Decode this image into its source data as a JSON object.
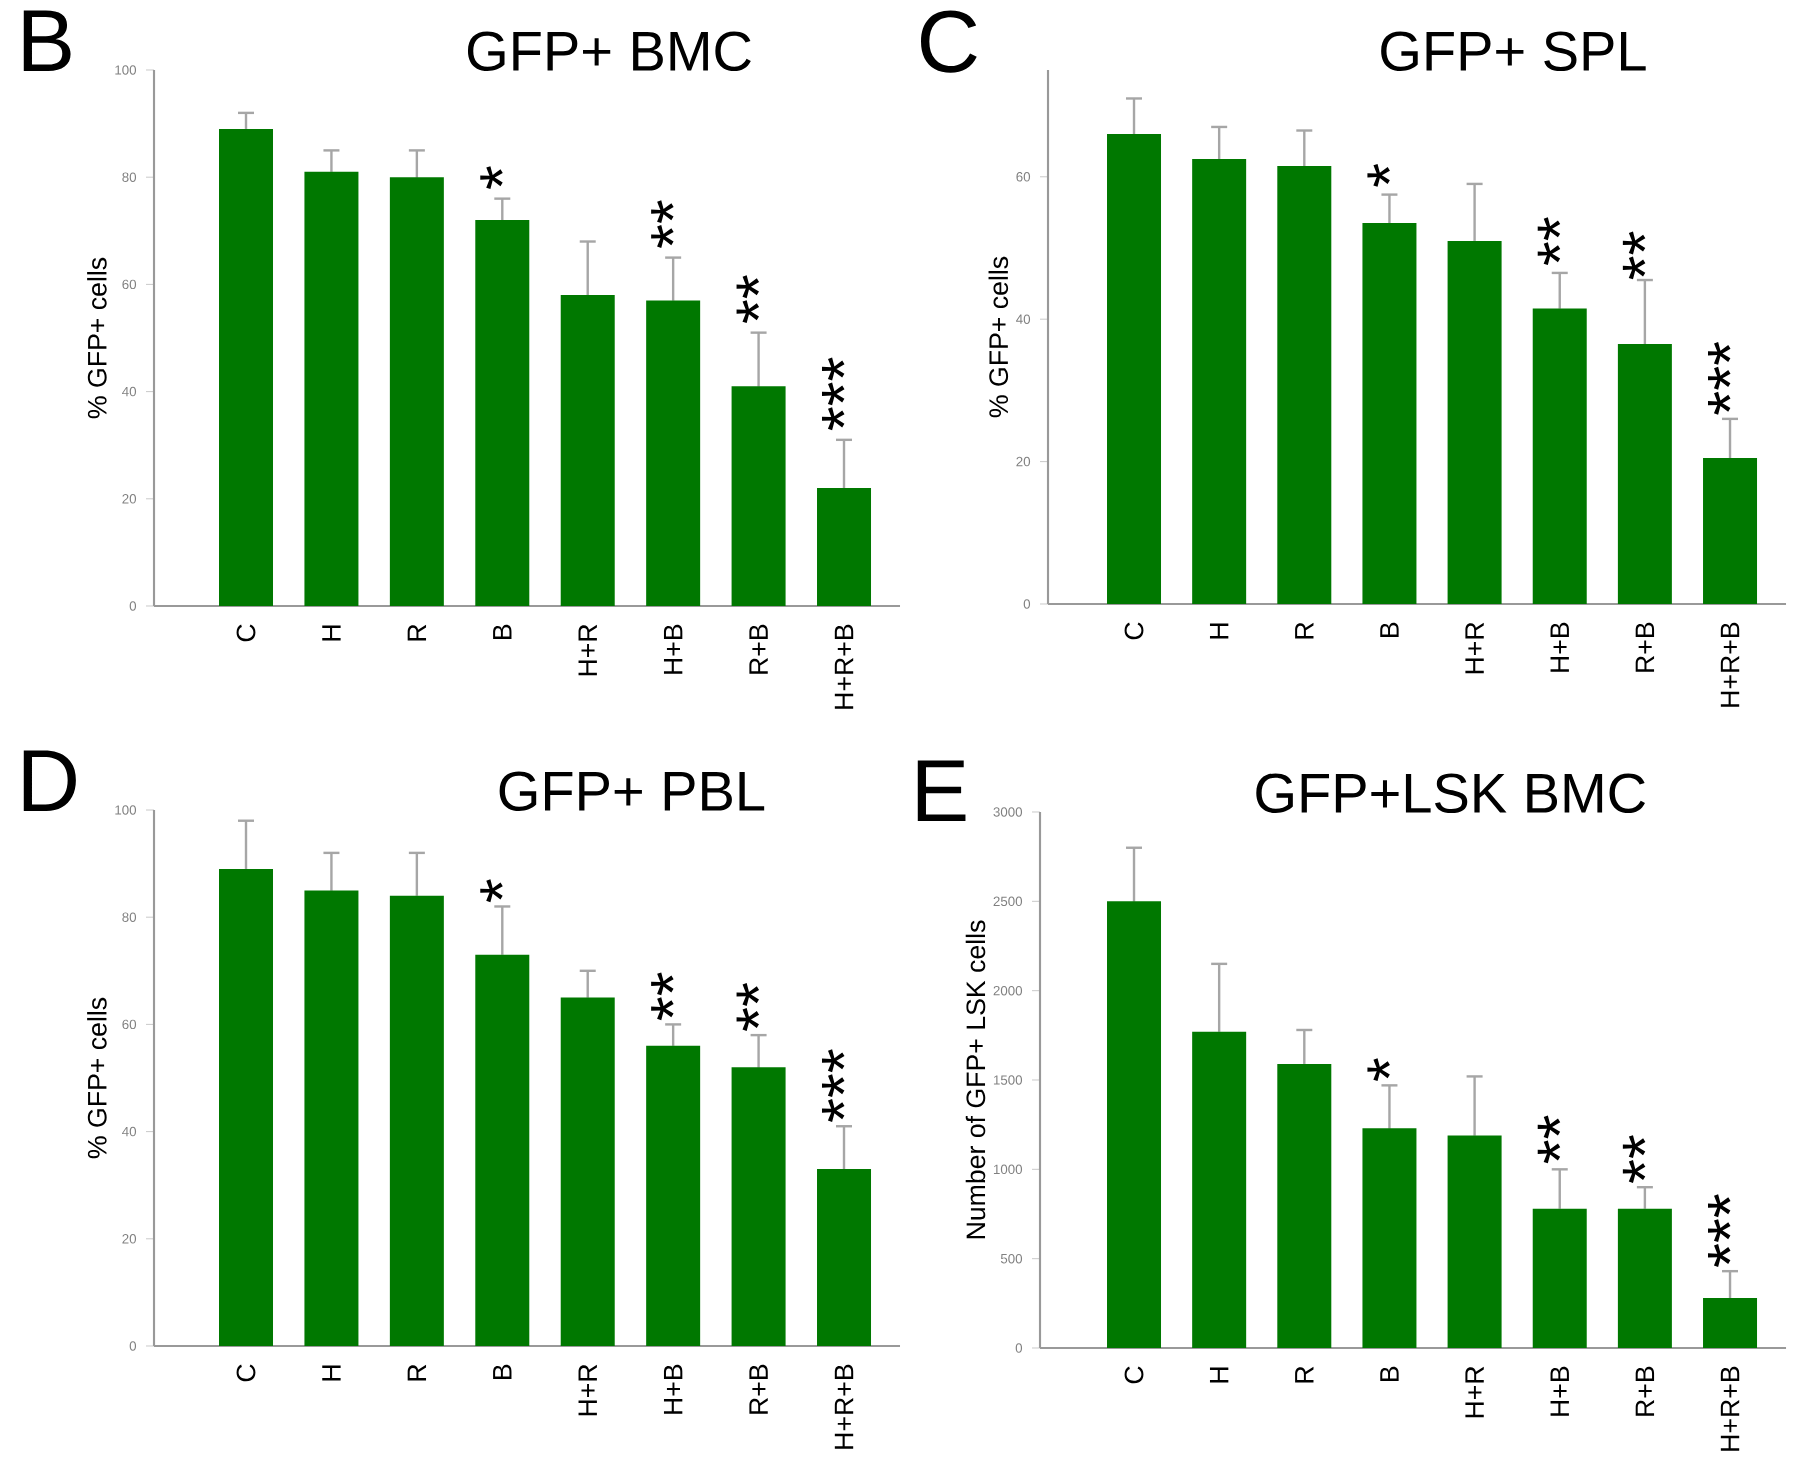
{
  "chart_data": [
    {
      "type": "bar",
      "title": "GFP+ BMC",
      "ylabel": "% GFP+ cells",
      "categories": [
        "C",
        "H",
        "R",
        "B",
        "H+R",
        "H+B",
        "R+B",
        "H+R+B"
      ],
      "values": [
        89,
        81,
        80,
        72,
        58,
        57,
        41,
        22
      ],
      "errors": [
        3,
        4,
        5,
        4,
        10,
        8,
        10,
        9
      ],
      "color": "#007800",
      "ylim": [
        0,
        100
      ],
      "yticks": [
        0,
        20,
        40,
        60,
        80,
        100
      ],
      "annotations": [
        "B",
        {
          "text": "*",
          "x": "B",
          "y": 77
        },
        {
          "text": "**",
          "x": "H+B",
          "y": 66
        },
        {
          "text": "**",
          "x": "R+B",
          "y": 52
        },
        {
          "text": "***",
          "x": "H+R+B",
          "y": 32
        }
      ]
    },
    {
      "type": "bar",
      "title": "GFP+ SPL",
      "ylabel": "% GFP+ cells",
      "categories": [
        "C",
        "H",
        "R",
        "B",
        "H+R",
        "H+B",
        "R+B",
        "H+R+B"
      ],
      "values": [
        66,
        62.5,
        61.5,
        53.5,
        51,
        41.5,
        36.5,
        20.5
      ],
      "errors": [
        5,
        4.5,
        5,
        4,
        8,
        5,
        9,
        5.5
      ],
      "color": "#007800",
      "ylim": [
        0,
        75
      ],
      "yticks": [
        0,
        20,
        40,
        60
      ],
      "annotations": [
        "C",
        {
          "text": "*",
          "x": "B",
          "y": 58
        },
        {
          "text": "**",
          "x": "H+B",
          "y": 47
        },
        {
          "text": "**",
          "x": "R+B",
          "y": 45
        },
        {
          "text": "***",
          "x": "H+R+B",
          "y": 26
        }
      ]
    },
    {
      "type": "bar",
      "title": "GFP+ PBL",
      "ylabel": "% GFP+ cells",
      "categories": [
        "C",
        "H",
        "R",
        "B",
        "H+R",
        "H+B",
        "R+B",
        "H+R+B"
      ],
      "values": [
        89,
        85,
        84,
        73,
        65,
        56,
        52,
        33
      ],
      "errors": [
        9,
        7,
        8,
        9,
        5,
        4,
        6,
        8
      ],
      "color": "#007800",
      "ylim": [
        0,
        100
      ],
      "yticks": [
        0,
        20,
        40,
        60,
        80,
        100
      ],
      "annotations": [
        "D",
        {
          "text": "*",
          "x": "B",
          "y": 82
        },
        {
          "text": "**",
          "x": "H+B",
          "y": 60
        },
        {
          "text": "**",
          "x": "R+B",
          "y": 58
        },
        {
          "text": "***",
          "x": "H+R+B",
          "y": 41
        }
      ]
    },
    {
      "type": "bar",
      "title": "GFP+LSK BMC",
      "ylabel": "Number of GFP+ LSK cells",
      "categories": [
        "C",
        "H",
        "R",
        "B",
        "H+R",
        "H+B",
        "R+B",
        "H+R+B"
      ],
      "values": [
        2500,
        1770,
        1590,
        1230,
        1190,
        780,
        780,
        280
      ],
      "errors": [
        300,
        380,
        190,
        240,
        330,
        220,
        120,
        150
      ],
      "color": "#007800",
      "ylim": [
        0,
        3000
      ],
      "yticks": [
        0,
        500,
        1000,
        1500,
        2000,
        2500,
        3000
      ],
      "annotations": [
        "E",
        {
          "text": "*",
          "x": "B",
          "y": 1470
        },
        {
          "text": "**",
          "x": "H+B",
          "y": 1010
        },
        {
          "text": "**",
          "x": "R+B",
          "y": 900
        },
        {
          "text": "***",
          "x": "H+R+B",
          "y": 430
        }
      ]
    }
  ]
}
